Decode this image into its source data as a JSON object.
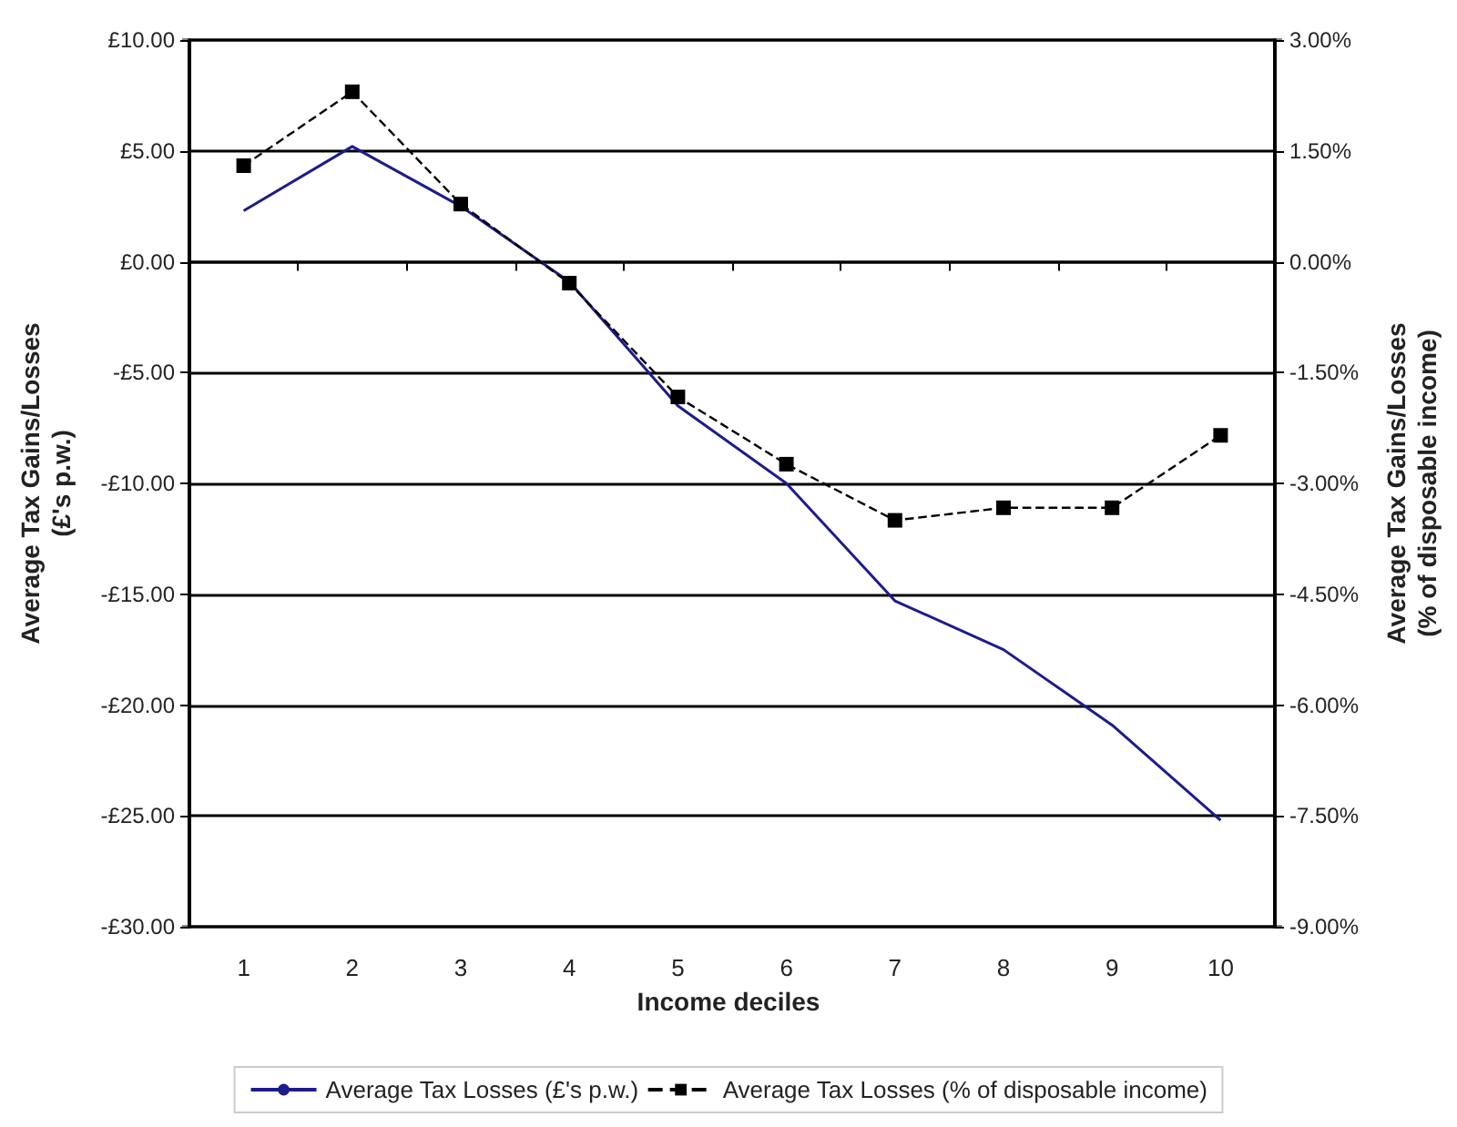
{
  "chart_data": {
    "type": "line",
    "xlabel": "Income deciles",
    "ylabel": "Average Tax Gains/Losses\n(£'s p.w.)",
    "y2label": "Average Tax Gains/Losses\n(% of disposable income)",
    "categories": [
      "1",
      "2",
      "3",
      "4",
      "5",
      "6",
      "7",
      "8",
      "9",
      "10"
    ],
    "series": [
      {
        "name": "Average Tax Losses (£'s p.w.)",
        "color": "#1c1c8c",
        "values": [
          2.3,
          5.2,
          2.5,
          -0.9,
          -6.5,
          -10.0,
          -15.3,
          -17.5,
          -20.9,
          -25.2
        ],
        "marker": "none",
        "line_style": "solid"
      },
      {
        "name": "Average Tax Losses (% of disposable income)",
        "color": "#000000",
        "axis": "y2",
        "values": [
          1.3,
          2.3,
          0.78,
          -0.29,
          -1.83,
          -2.74,
          -3.5,
          -3.33,
          -3.33,
          -2.35
        ],
        "marker": "square",
        "line_style": "dashed"
      }
    ],
    "ylim": [
      -30,
      10
    ],
    "yticks": [
      {
        "value": -30,
        "label": "-£30.00"
      },
      {
        "value": -25,
        "label": "-£25.00"
      },
      {
        "value": -20,
        "label": "-£20.00"
      },
      {
        "value": -15,
        "label": "-£15.00"
      },
      {
        "value": -10,
        "label": "-£10.00"
      },
      {
        "value": -5,
        "label": "-£5.00"
      },
      {
        "value": 0,
        "label": "£0.00"
      },
      {
        "value": 5,
        "label": "£5.00"
      },
      {
        "value": 10,
        "label": "£10.00"
      }
    ],
    "y2lim": [
      -9,
      3
    ],
    "y2ticks": [
      {
        "value": -9,
        "label": "-9.00%"
      },
      {
        "value": -7.5,
        "label": "-7.50%"
      },
      {
        "value": -6,
        "label": "-6.00%"
      },
      {
        "value": -4.5,
        "label": "-4.50%"
      },
      {
        "value": -3,
        "label": "-3.00%"
      },
      {
        "value": -1.5,
        "label": "-1.50%"
      },
      {
        "value": 0,
        "label": "0.00%"
      },
      {
        "value": 1.5,
        "label": "1.50%"
      },
      {
        "value": 3,
        "label": "3.00%"
      }
    ],
    "grid": "y",
    "legend": "bottom"
  }
}
